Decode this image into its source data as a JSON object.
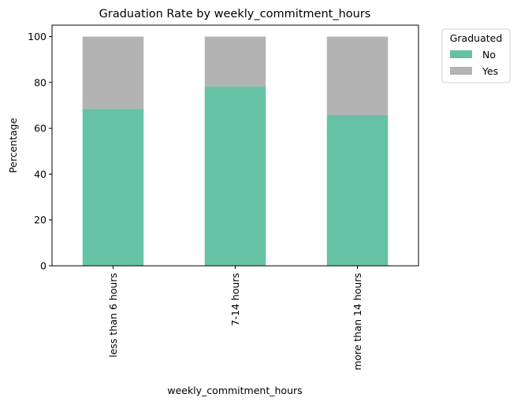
{
  "chart_data": {
    "type": "bar",
    "stacked": true,
    "title": "Graduation Rate by weekly_commitment_hours",
    "xlabel": "weekly_commitment_hours",
    "ylabel": "Percentage",
    "categories": [
      "less than 6 hours",
      "7-14 hours",
      "more than 14 hours"
    ],
    "series": [
      {
        "name": "No",
        "values": [
          68.5,
          78.2,
          65.7
        ],
        "color": "#66c2a5"
      },
      {
        "name": "Yes",
        "values": [
          31.5,
          21.8,
          34.3
        ],
        "color": "#b3b3b3"
      }
    ],
    "ylim": [
      0,
      100
    ],
    "yticks": [
      0,
      20,
      40,
      60,
      80,
      100
    ],
    "grid": false,
    "legend": {
      "title": "Graduated",
      "placement": "outside upper right"
    }
  }
}
